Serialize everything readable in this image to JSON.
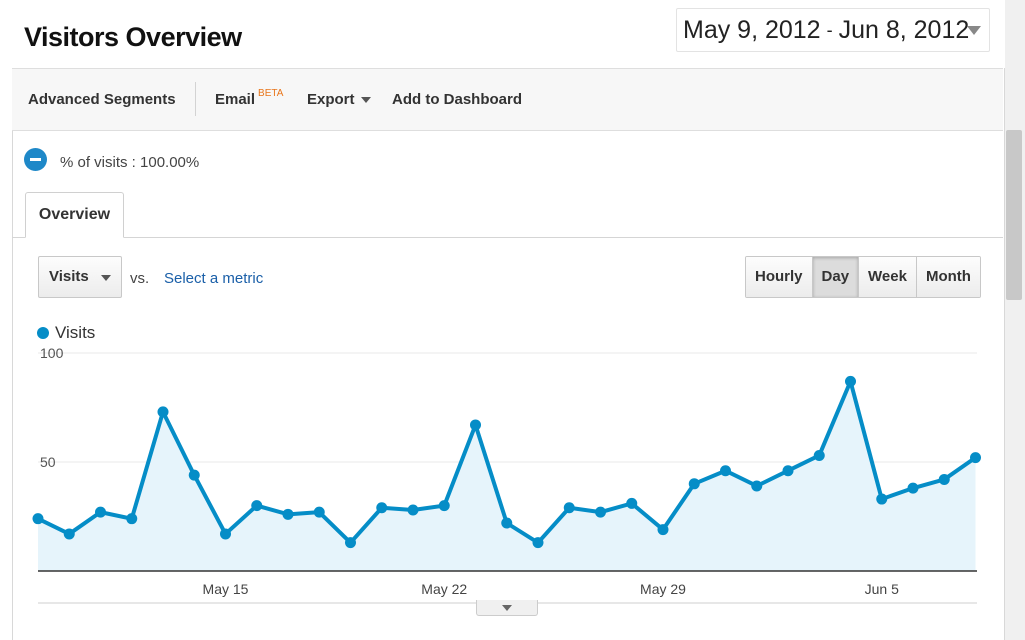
{
  "header": {
    "title": "Visitors Overview",
    "date_start": "May 9, 2012",
    "date_separator": "-",
    "date_end": "Jun 8, 2012"
  },
  "toolbar": {
    "advanced_segments": "Advanced Segments",
    "email": "Email",
    "email_badge": "BETA",
    "export": "Export",
    "add_to_dashboard": "Add to Dashboard"
  },
  "segment": {
    "text": "% of visits : 100.00%"
  },
  "tabs": [
    {
      "label": "Overview"
    }
  ],
  "metric_controls": {
    "metric": "Visits",
    "vs": "vs.",
    "select_metric": "Select a metric"
  },
  "granularity": [
    {
      "label": "Hourly",
      "active": false
    },
    {
      "label": "Day",
      "active": true
    },
    {
      "label": "Week",
      "active": false
    },
    {
      "label": "Month",
      "active": false
    }
  ],
  "colors": {
    "series": "#058dc7",
    "fill": "#e6f4fb",
    "link": "#1a5fa8",
    "beta": "#e8751a"
  },
  "chart_data": {
    "type": "line",
    "series": [
      {
        "name": "Visits",
        "values": [
          24,
          17,
          27,
          24,
          73,
          44,
          17,
          30,
          26,
          27,
          13,
          29,
          28,
          30,
          67,
          22,
          13,
          29,
          27,
          31,
          19,
          40,
          46,
          39,
          46,
          53,
          87,
          33,
          38,
          42,
          52
        ]
      }
    ],
    "x_start": "2012-05-09",
    "x_tick_labels": [
      "May 15",
      "May 22",
      "May 29",
      "Jun 5"
    ],
    "y_tick_labels": [
      "100",
      "50"
    ],
    "ylim": [
      0,
      100
    ],
    "grid": true
  }
}
